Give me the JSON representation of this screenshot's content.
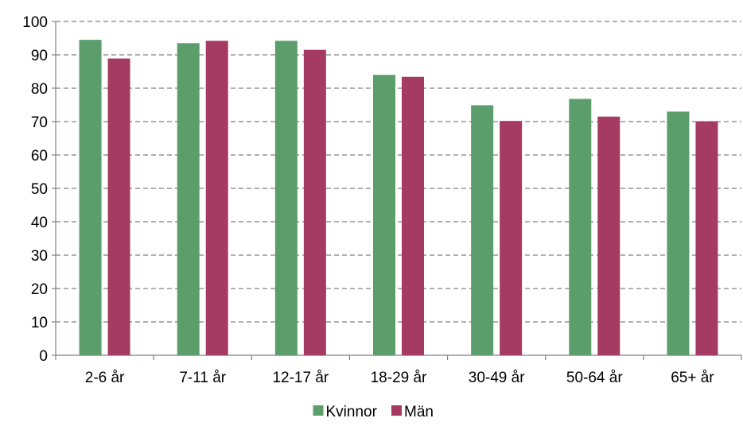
{
  "chart_data": {
    "type": "bar",
    "title": "",
    "xlabel": "",
    "ylabel": "",
    "categories": [
      "2-6 år",
      "7-11 år",
      "12-17 år",
      "18-29 år",
      "30-49 år",
      "50-64 år",
      "65+ år"
    ],
    "series": [
      {
        "name": "Kvinnor",
        "color": "#5b9e6b",
        "values": [
          94.5,
          93.5,
          94.2,
          84.0,
          74.9,
          76.8,
          73.0
        ]
      },
      {
        "name": "Män",
        "color": "#a53a63",
        "values": [
          88.9,
          94.2,
          91.5,
          83.4,
          70.2,
          71.5,
          70.1
        ]
      }
    ],
    "ylim": [
      0,
      100
    ],
    "yticks": [
      0,
      10,
      20,
      30,
      40,
      50,
      60,
      70,
      80,
      90,
      100
    ],
    "grid": true,
    "legend_position": "bottom-center"
  }
}
